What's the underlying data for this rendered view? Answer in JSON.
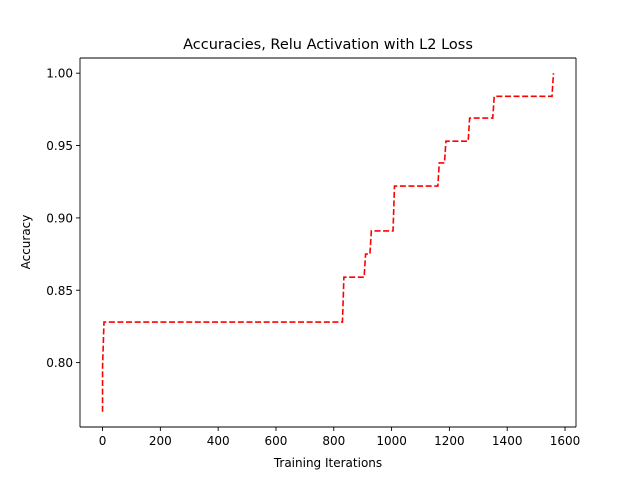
{
  "chart_data": {
    "type": "line",
    "title": "Accuracies, Relu Activation with L2 Loss",
    "xlabel": "Training Iterations",
    "ylabel": "Accuracy",
    "xlim": [
      -78,
      1638
    ],
    "ylim": [
      0.7555,
      1.0105
    ],
    "xticks": [
      0,
      200,
      400,
      600,
      800,
      1000,
      1200,
      1400,
      1600
    ],
    "xtick_labels": [
      "0",
      "200",
      "400",
      "600",
      "800",
      "1000",
      "1200",
      "1400",
      "1600"
    ],
    "yticks": [
      0.8,
      0.85,
      0.9,
      0.95,
      1.0
    ],
    "ytick_labels": [
      "0.80",
      "0.85",
      "0.90",
      "0.95",
      "1.00"
    ],
    "grid": false,
    "legend": null,
    "series": [
      {
        "color": "#ff0000",
        "linestyle": "dashed",
        "x": [
          0,
          0,
          5,
          830,
          835,
          905,
          910,
          925,
          930,
          1005,
          1010,
          1160,
          1165,
          1183,
          1188,
          1265,
          1270,
          1350,
          1355,
          1555,
          1560
        ],
        "y": [
          0.766,
          0.797,
          0.828,
          0.828,
          0.859,
          0.859,
          0.875,
          0.875,
          0.891,
          0.891,
          0.922,
          0.922,
          0.938,
          0.938,
          0.953,
          0.953,
          0.969,
          0.969,
          0.984,
          0.984,
          1.0
        ]
      }
    ]
  }
}
